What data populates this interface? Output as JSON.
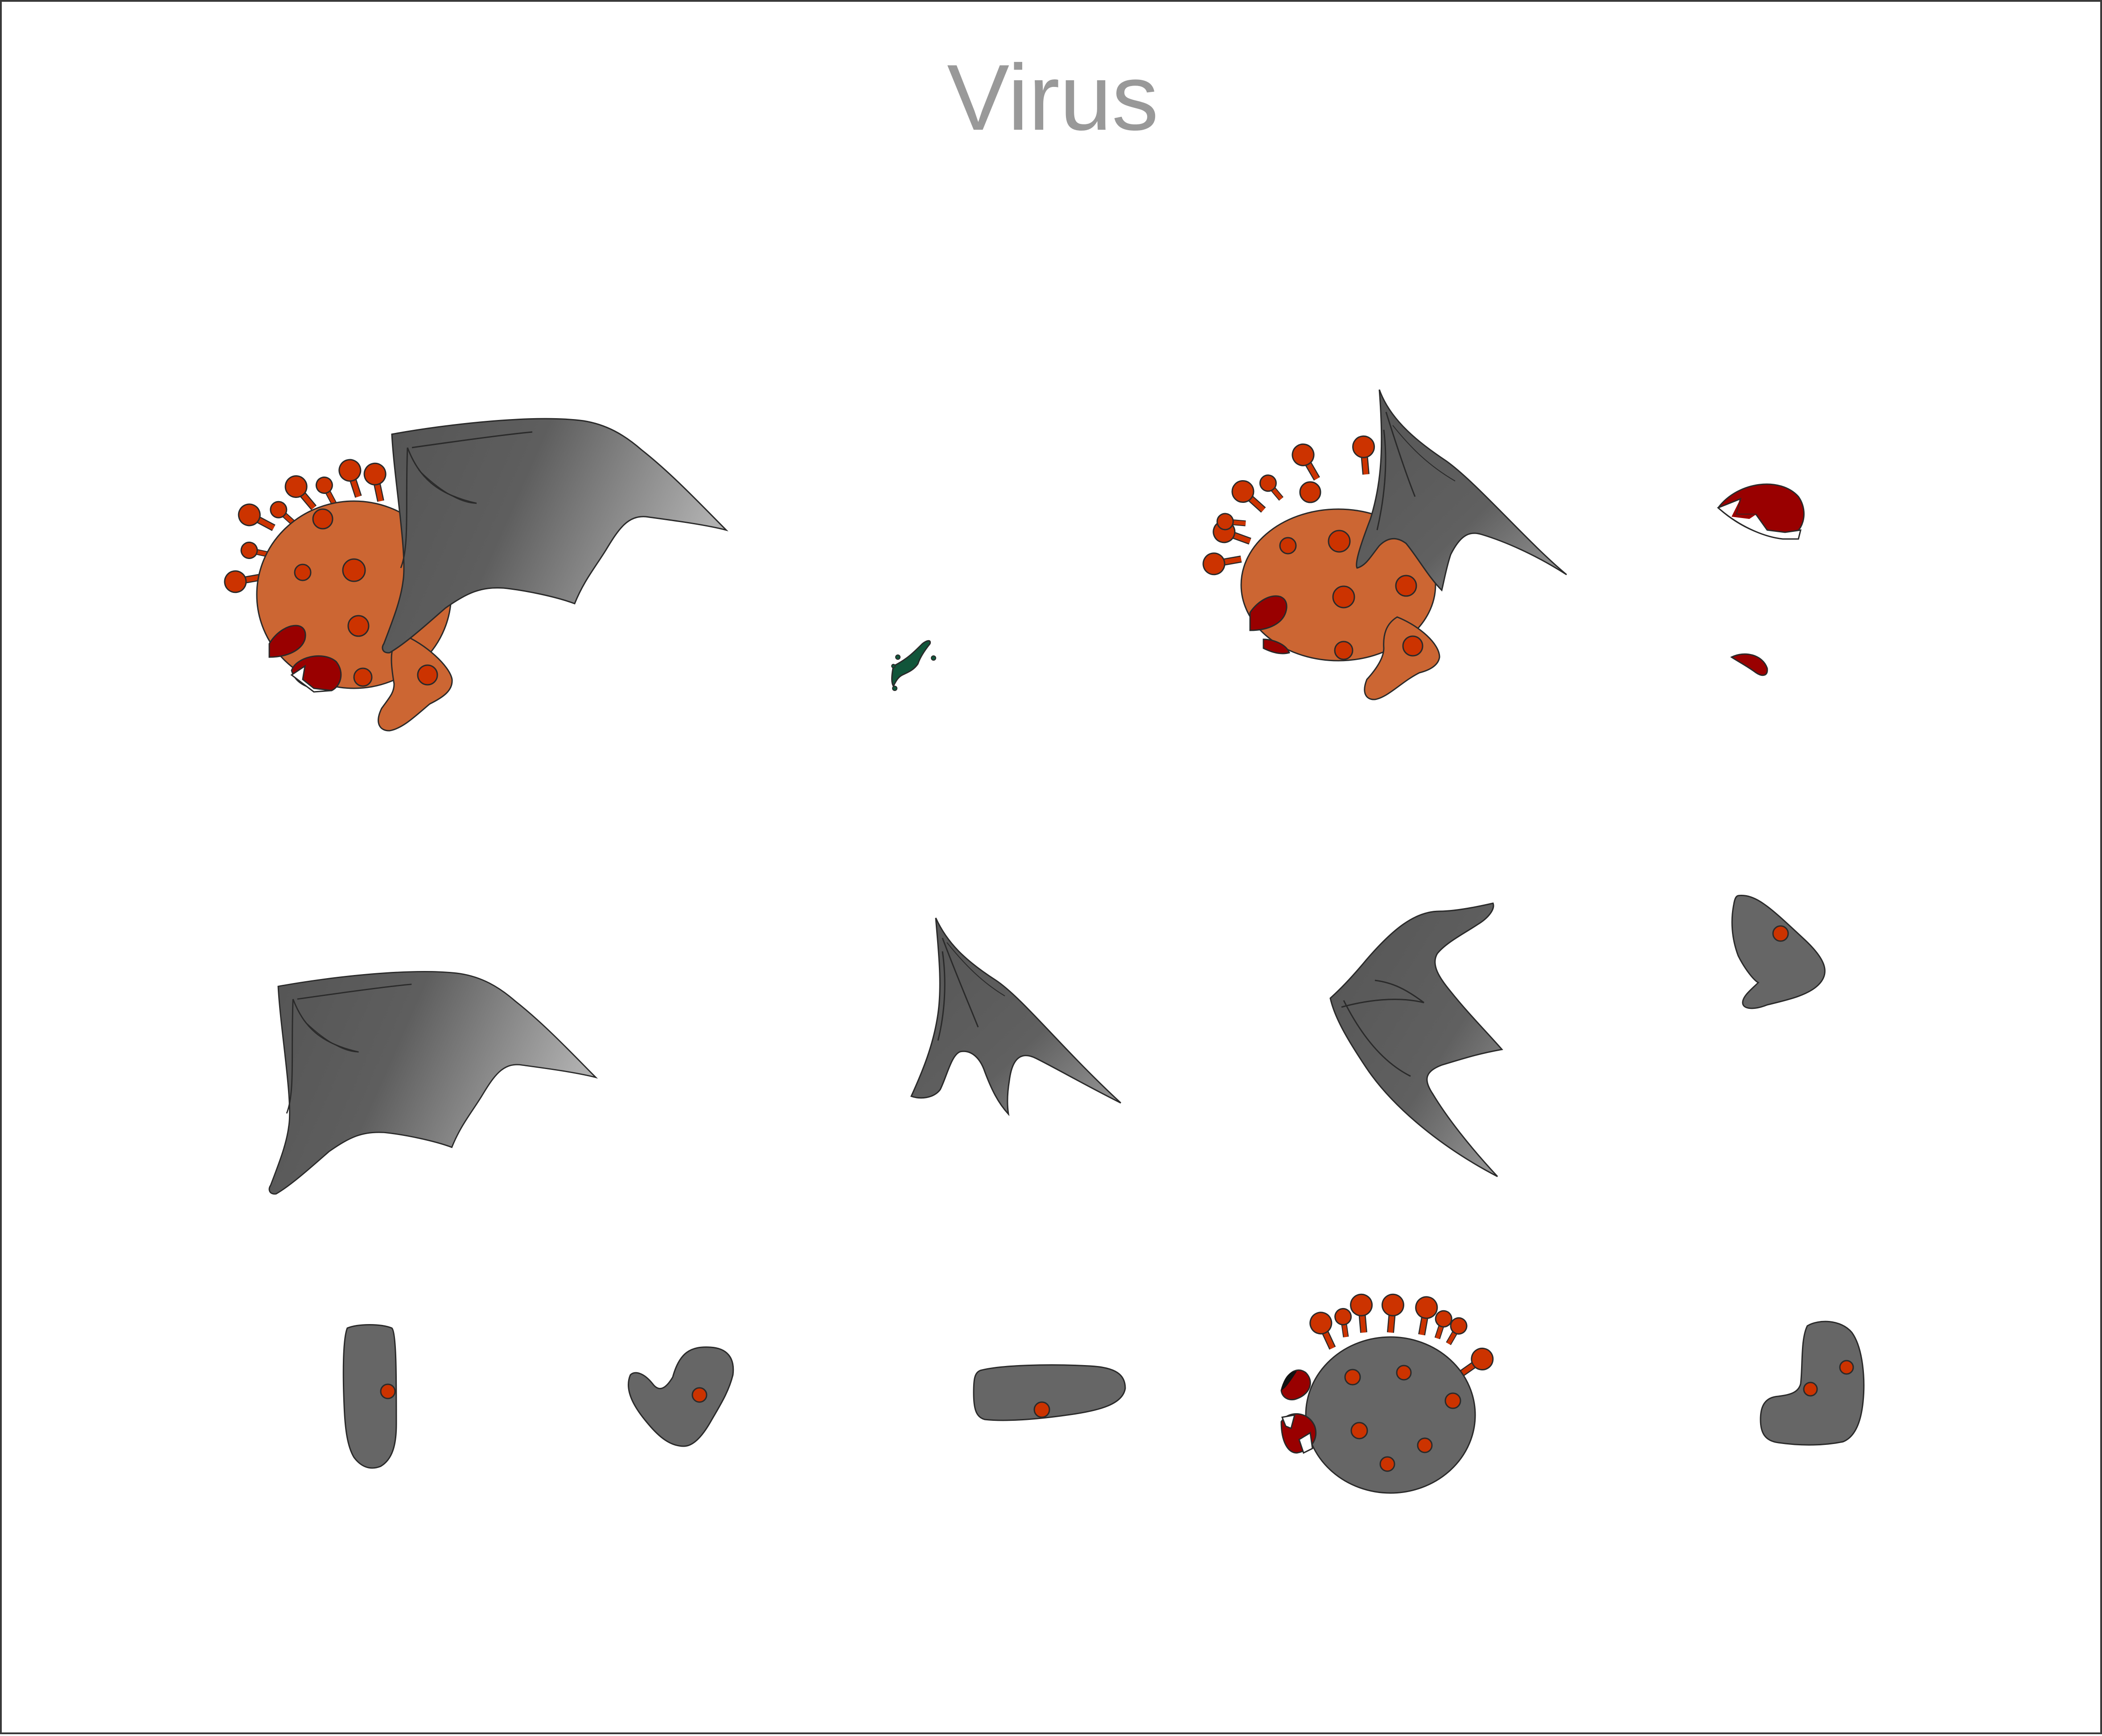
{
  "title": "Virus",
  "colors": {
    "background": "#ffffff",
    "border": "#3a3a3a",
    "title_text": "#999999",
    "virus_body": "#cc6633",
    "spot": "#cc3300",
    "wing_dark": "#555555",
    "wing_light": "#a8a8a8",
    "mouth": "#990000",
    "dead_body": "#666666",
    "slime": "#11553a"
  },
  "sprites": [
    {
      "name": "virus-winged-frame-1"
    },
    {
      "name": "slime-splat-effect"
    },
    {
      "name": "virus-winged-frame-2"
    },
    {
      "name": "mouth-open-part"
    },
    {
      "name": "mouth-closed-part"
    },
    {
      "name": "wing-spread-part"
    },
    {
      "name": "wing-raised-part"
    },
    {
      "name": "wing-folded-part"
    },
    {
      "name": "foot-bent-part"
    },
    {
      "name": "leg-straight-part"
    },
    {
      "name": "arm-bent-part"
    },
    {
      "name": "limb-horizontal-part"
    },
    {
      "name": "body-gray-part"
    },
    {
      "name": "foot-l-part"
    }
  ]
}
